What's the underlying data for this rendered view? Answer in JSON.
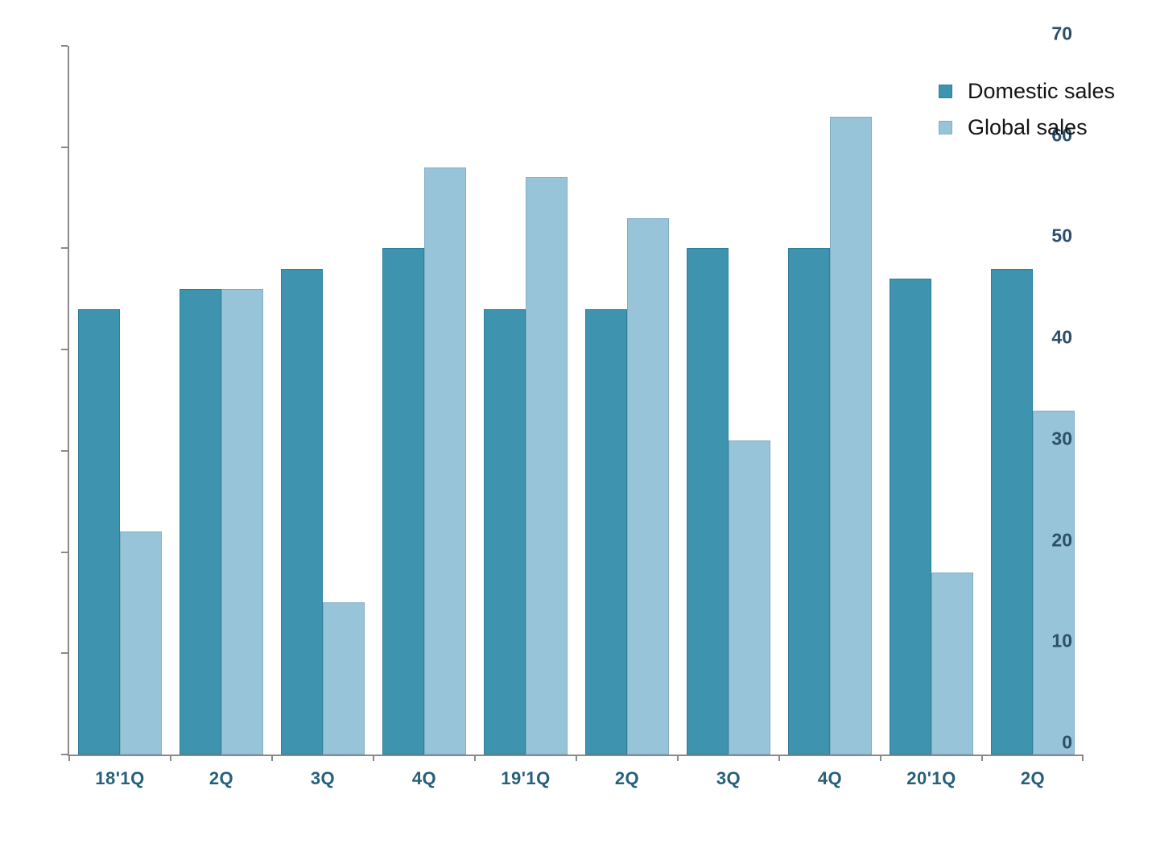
{
  "chart_data": {
    "type": "bar",
    "title": "",
    "xlabel": "",
    "ylabel": "",
    "categories": [
      "18'1Q",
      "2Q",
      "3Q",
      "4Q",
      "19'1Q",
      "2Q",
      "3Q",
      "4Q",
      "20'1Q",
      "2Q"
    ],
    "series": [
      {
        "name": "Domestic sales",
        "color": "#3E94AE",
        "border_color": "#2D7E9C",
        "values": [
          44,
          46,
          48,
          50,
          44,
          44,
          50,
          50,
          47,
          48
        ]
      },
      {
        "name": "Global sales",
        "color": "#97C4D8",
        "border_color": "#7FAEC6",
        "values": [
          22,
          46,
          15,
          58,
          57,
          53,
          31,
          63,
          18,
          34
        ]
      }
    ],
    "ylim": [
      0,
      70
    ],
    "yticks": [
      0,
      10,
      20,
      30,
      40,
      50,
      60,
      70
    ],
    "grid": false,
    "legend_position": "top-right",
    "axis_color": "#8A8A8A",
    "ytick_label_color": "#2D4F6B",
    "xtick_label_color": "#26607A"
  }
}
